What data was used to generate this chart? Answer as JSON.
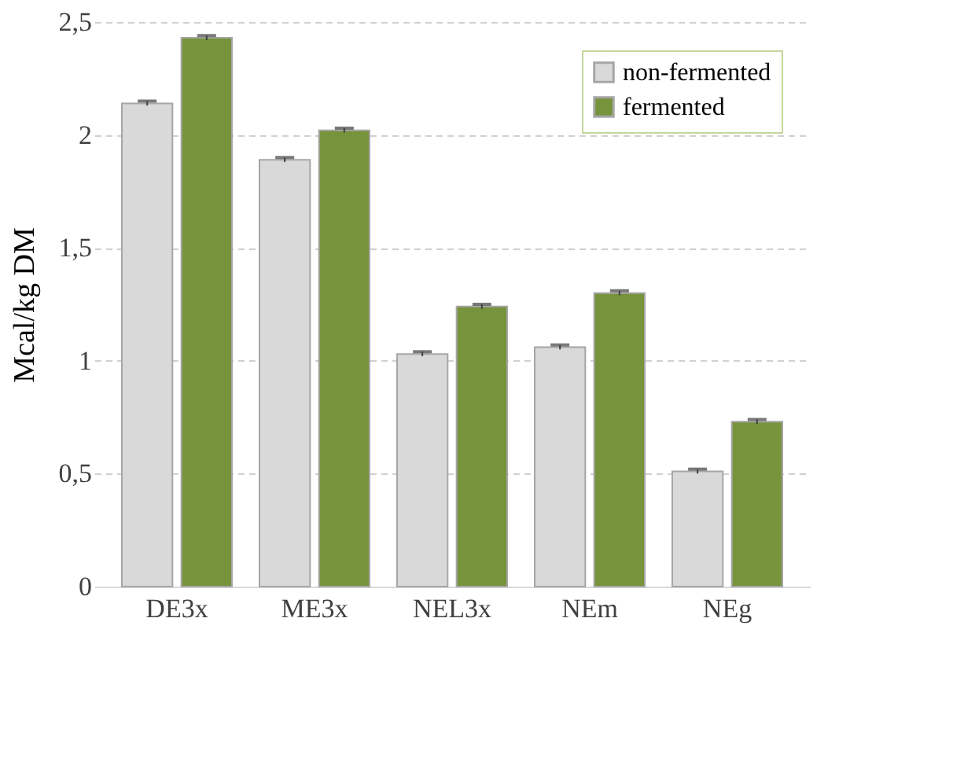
{
  "chart_data": {
    "type": "bar",
    "ylabel": "Mcal/kg DM",
    "categories": [
      "DE3x",
      "ME3x",
      "NEL3x",
      "NEm",
      "NEg"
    ],
    "series": [
      {
        "name": "non-fermented",
        "color": "#d9d9d9",
        "values": [
          2.14,
          1.89,
          1.03,
          1.06,
          0.51
        ],
        "errors": [
          0.01,
          0.01,
          0.01,
          0.01,
          0.01
        ]
      },
      {
        "name": "fermented",
        "color": "#77933c",
        "values": [
          2.43,
          2.02,
          1.24,
          1.3,
          0.73
        ],
        "errors": [
          0.01,
          0.01,
          0.01,
          0.01,
          0.01
        ]
      }
    ],
    "ylim": [
      0,
      2.5
    ],
    "yticks": [
      0,
      {
        "value": 0.5,
        "label": "0,5"
      },
      1,
      {
        "value": 1.5,
        "label": "1,5"
      },
      2,
      {
        "value": 2.5,
        "label": "2,5"
      }
    ],
    "grid": "y",
    "legend": "top right"
  }
}
